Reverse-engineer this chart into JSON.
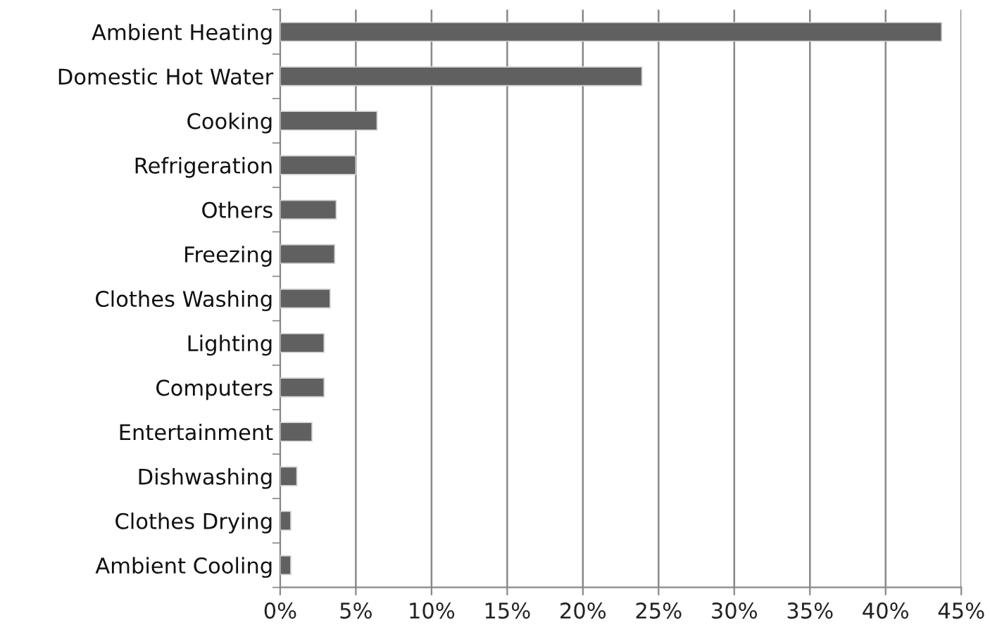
{
  "chart_data": {
    "type": "bar",
    "orientation": "horizontal",
    "categories": [
      "Ambient Heating",
      "Domestic Hot Water",
      "Cooking",
      "Refrigeration",
      "Others",
      "Freezing",
      "Clothes Washing",
      "Lighting",
      "Computers",
      "Entertainment",
      "Dishwashing",
      "Clothes Drying",
      "Ambient Cooling"
    ],
    "values": [
      43.7,
      23.9,
      6.4,
      5.0,
      3.7,
      3.6,
      3.3,
      2.9,
      2.9,
      2.1,
      1.1,
      0.7,
      0.7
    ],
    "color": "#606060",
    "xlim": [
      0,
      45
    ],
    "xticks": [
      {
        "value": 0,
        "label": "0%"
      },
      {
        "value": 5,
        "label": "5%"
      },
      {
        "value": 10,
        "label": "10%"
      },
      {
        "value": 15,
        "label": "15%"
      },
      {
        "value": 20,
        "label": "20%"
      },
      {
        "value": 25,
        "label": "25%"
      },
      {
        "value": 30,
        "label": "30%"
      },
      {
        "value": 35,
        "label": "35%"
      },
      {
        "value": 40,
        "label": "40%"
      },
      {
        "value": 45,
        "label": "45%"
      }
    ],
    "grid": "x"
  }
}
